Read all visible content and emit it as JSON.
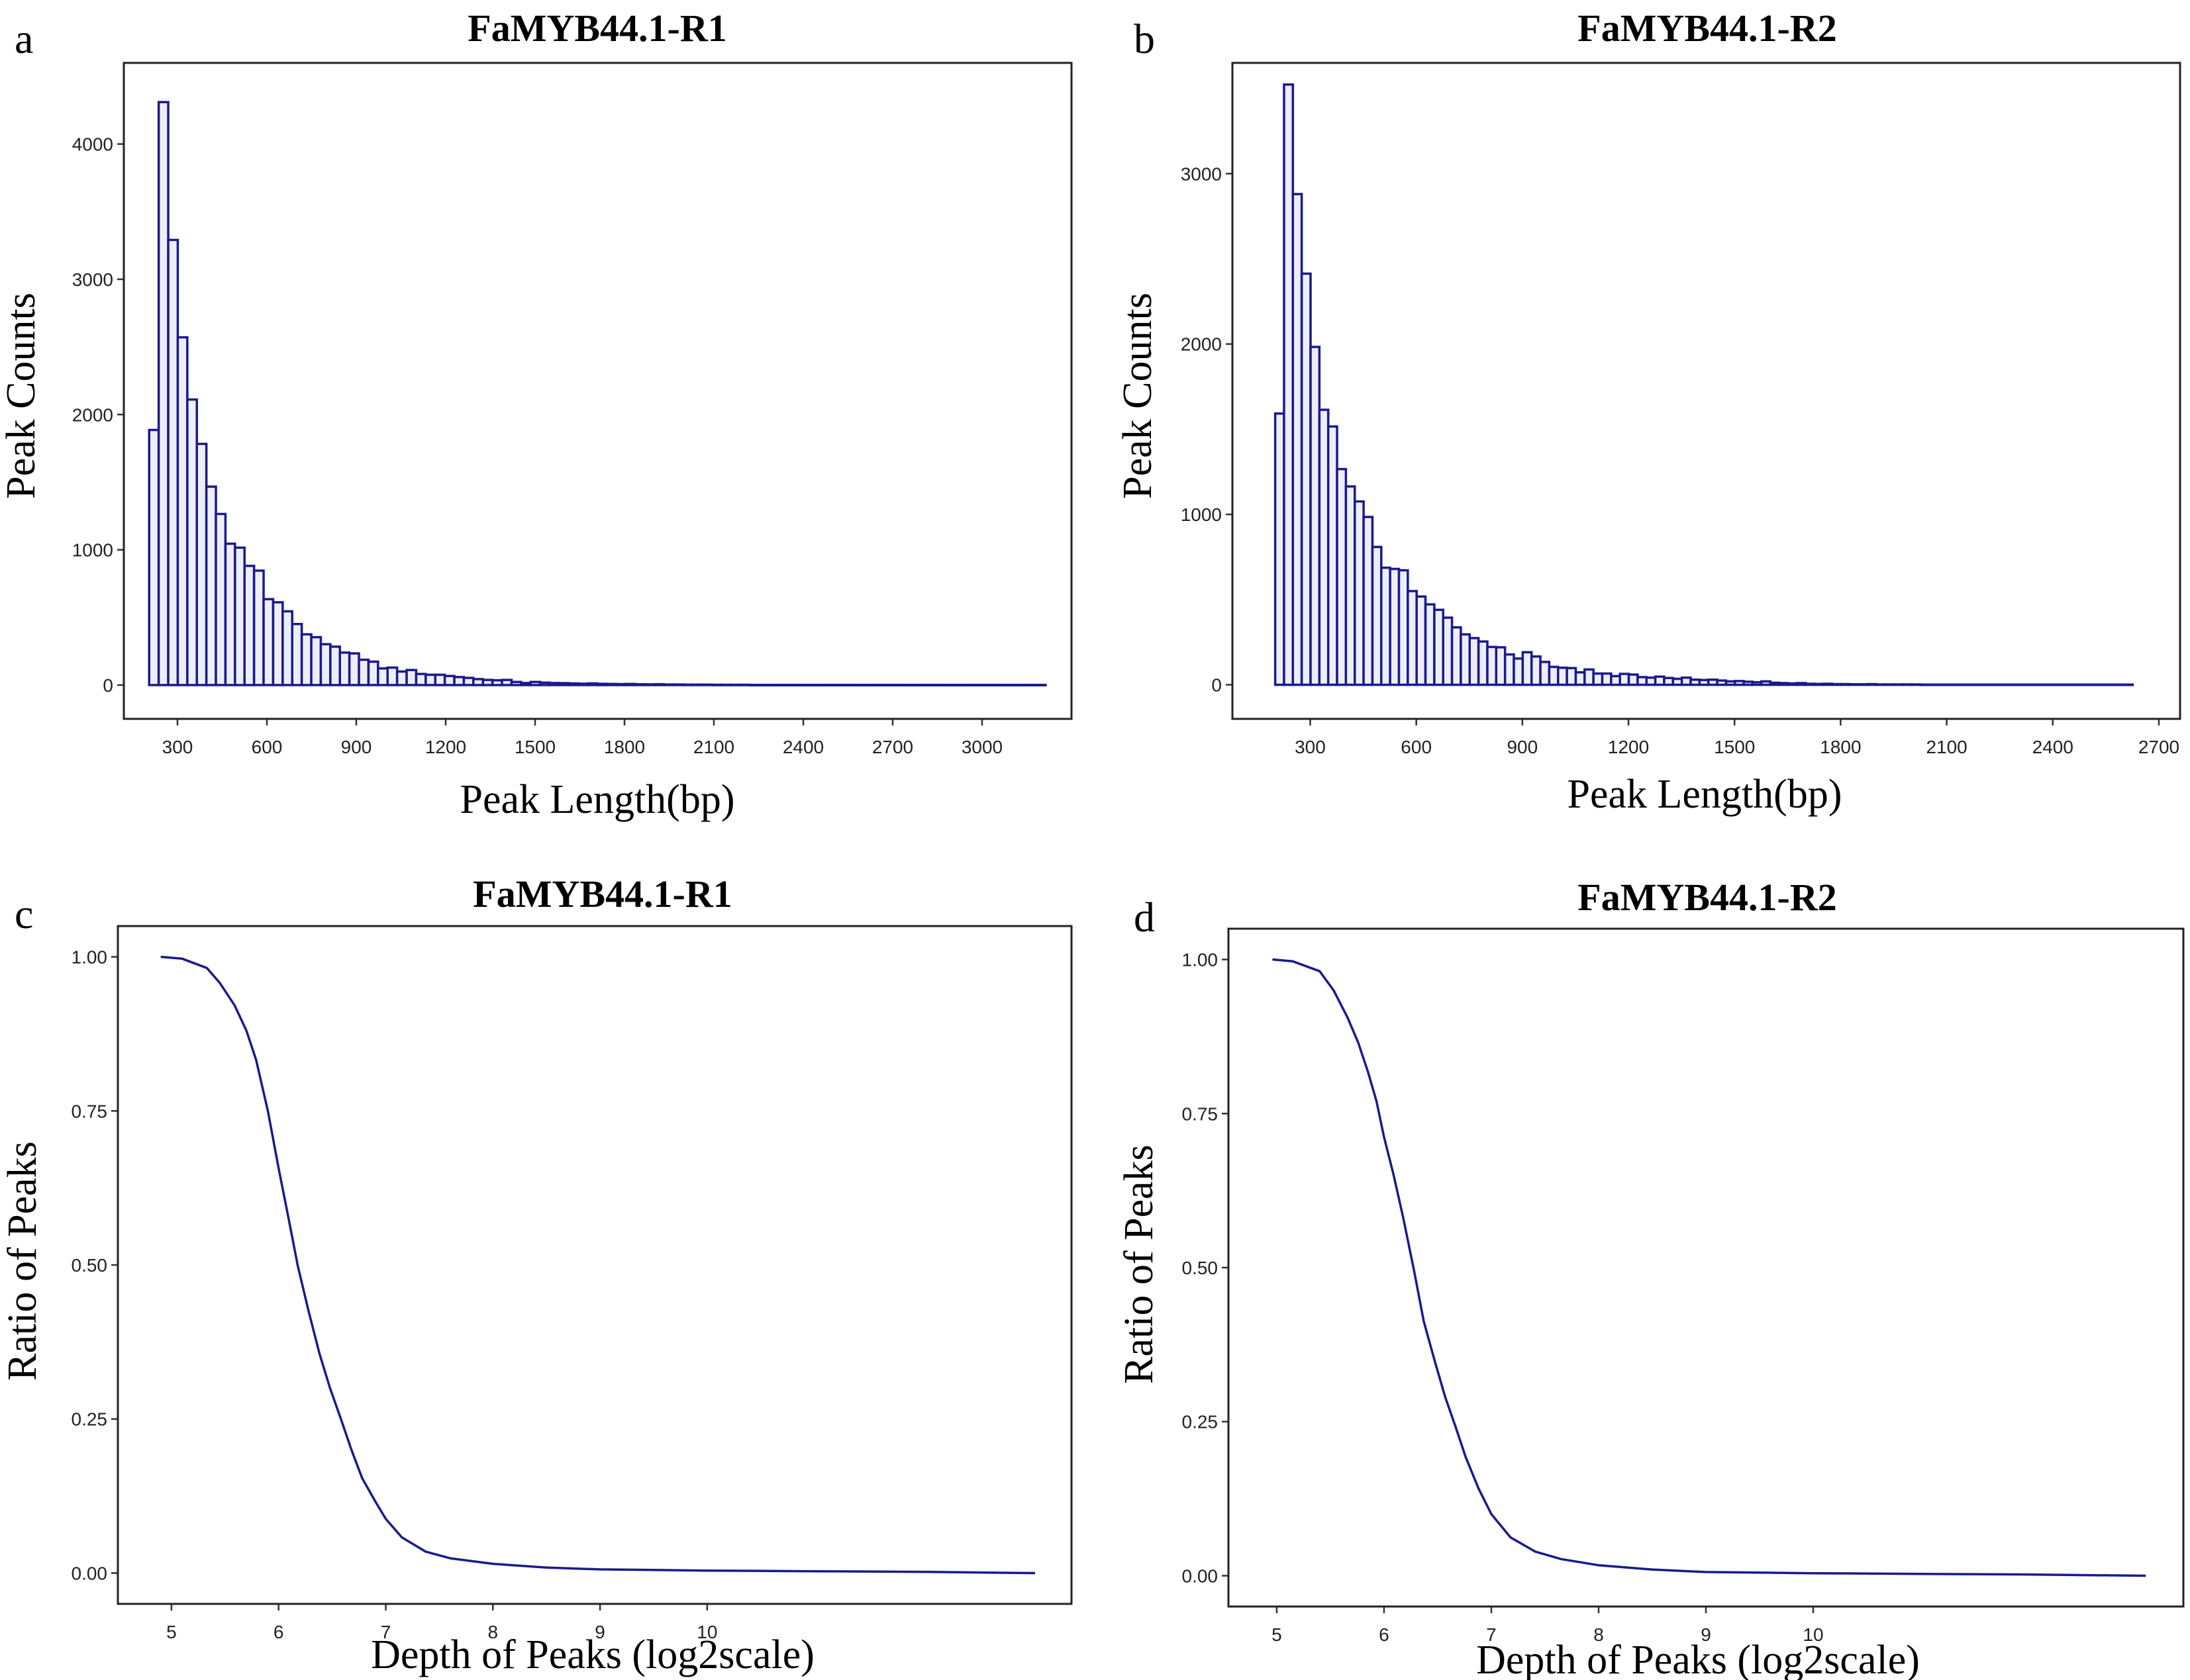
{
  "colors": {
    "bar_stroke": "#1a1a8c",
    "bar_fill": "#eeeefa",
    "curve": "#1a1a8c"
  },
  "chart_data": [
    {
      "id": "a",
      "panel_letter": "a",
      "type": "bar",
      "subtype": "histogram",
      "title": "FaMYB44.1-R1",
      "xlabel": "Peak Length(bp)",
      "ylabel": "Peak Counts",
      "xlim": [
        120,
        3300
      ],
      "ylim": [
        -250,
        4600
      ],
      "xticks": [
        300,
        600,
        900,
        1200,
        1500,
        1800,
        2100,
        2400,
        2700,
        3000
      ],
      "yticks": [
        0,
        1000,
        2000,
        3000,
        4000
      ],
      "bin_start": 205,
      "bin_width": 32,
      "values": [
        1886,
        4310,
        3291,
        2571,
        2111,
        1783,
        1467,
        1265,
        1045,
        1016,
        881,
        846,
        635,
        612,
        545,
        451,
        375,
        354,
        302,
        284,
        240,
        234,
        187,
        173,
        123,
        129,
        100,
        111,
        82,
        76,
        76,
        67,
        59,
        53,
        44,
        38,
        35,
        38,
        23,
        15,
        23,
        18,
        15,
        14,
        12,
        10,
        12,
        9,
        8,
        7,
        8,
        6,
        5,
        6,
        4,
        4,
        3,
        3,
        3,
        2,
        2,
        2,
        2,
        1,
        1,
        1,
        1,
        1,
        1,
        1,
        1,
        1,
        1,
        1,
        1,
        1,
        1,
        1,
        1,
        1,
        1,
        1,
        1,
        1,
        1,
        1,
        1,
        1,
        1,
        1,
        1,
        1,
        1,
        1
      ]
    },
    {
      "id": "b",
      "panel_letter": "b",
      "type": "bar",
      "subtype": "histogram",
      "title": "FaMYB44.1-R2",
      "xlabel": "Peak Length(bp)",
      "ylabel": "Peak Counts",
      "xlim": [
        80,
        2760
      ],
      "ylim": [
        -200,
        3650
      ],
      "xticks": [
        300,
        600,
        900,
        1200,
        1500,
        1800,
        2100,
        2400,
        2700
      ],
      "yticks": [
        0,
        1000,
        2000,
        3000
      ],
      "bin_start": 201,
      "bin_width": 25,
      "values": [
        1592,
        3523,
        2880,
        2413,
        1983,
        1614,
        1516,
        1266,
        1164,
        1076,
        985,
        809,
        687,
        680,
        672,
        550,
        518,
        472,
        440,
        394,
        337,
        296,
        274,
        254,
        222,
        220,
        178,
        154,
        191,
        166,
        134,
        105,
        100,
        98,
        73,
        90,
        66,
        66,
        51,
        64,
        60,
        45,
        42,
        48,
        40,
        35,
        42,
        30,
        28,
        30,
        25,
        20,
        22,
        18,
        15,
        20,
        12,
        10,
        8,
        10,
        6,
        5,
        6,
        4,
        4,
        3,
        3,
        4,
        2,
        2,
        2,
        2,
        2,
        1,
        1,
        1,
        1,
        1,
        1,
        1,
        1,
        1,
        1,
        1,
        1,
        1,
        1,
        1,
        1,
        1,
        1,
        1,
        1,
        1,
        1,
        1,
        1
      ]
    },
    {
      "id": "c",
      "panel_letter": "c",
      "type": "line",
      "title": "FaMYB44.1-R1",
      "xlabel": "Depth of Peaks (log2scale)",
      "ylabel": "Ratio of Peaks",
      "xlim": [
        4.5,
        13.4
      ],
      "ylim": [
        -0.05,
        1.05
      ],
      "xticks": [
        5,
        6,
        7,
        8,
        9,
        10
      ],
      "yticks": [
        0.0,
        0.25,
        0.5,
        0.75,
        1.0
      ],
      "ytick_labels": [
        "0.00",
        "0.25",
        "0.50",
        "0.75",
        "1.00"
      ],
      "x": [
        4.9,
        5.1,
        5.33,
        5.45,
        5.59,
        5.7,
        5.79,
        5.9,
        6.0,
        6.09,
        6.18,
        6.28,
        6.38,
        6.48,
        6.58,
        6.68,
        6.78,
        6.9,
        7.0,
        7.15,
        7.37,
        7.6,
        8.0,
        8.5,
        9.0,
        9.5,
        10.0,
        11.0,
        12.0,
        13.06
      ],
      "y": [
        1.0,
        0.997,
        0.982,
        0.958,
        0.921,
        0.88,
        0.833,
        0.75,
        0.657,
        0.578,
        0.498,
        0.425,
        0.357,
        0.3,
        0.251,
        0.2,
        0.154,
        0.117,
        0.088,
        0.058,
        0.035,
        0.024,
        0.015,
        0.009,
        0.006,
        0.005,
        0.004,
        0.003,
        0.002,
        0.0
      ]
    },
    {
      "id": "d",
      "panel_letter": "d",
      "type": "line",
      "title": "FaMYB44.1-R2",
      "xlabel": "Depth of Peaks (log2scale)",
      "ylabel": "Ratio of Peaks",
      "xlim": [
        4.55,
        13.45
      ],
      "ylim": [
        -0.05,
        1.05
      ],
      "xticks": [
        5,
        6,
        7,
        8,
        9,
        10
      ],
      "yticks": [
        0.0,
        0.25,
        0.5,
        0.75,
        1.0
      ],
      "ytick_labels": [
        "0.00",
        "0.25",
        "0.50",
        "0.75",
        "1.00"
      ],
      "x": [
        4.96,
        5.15,
        5.4,
        5.53,
        5.66,
        5.76,
        5.85,
        5.93,
        6.0,
        6.09,
        6.18,
        6.28,
        6.37,
        6.47,
        6.57,
        6.67,
        6.76,
        6.88,
        7.0,
        7.18,
        7.41,
        7.65,
        8.0,
        8.5,
        9.0,
        9.5,
        10.0,
        11.0,
        12.0,
        13.1
      ],
      "y": [
        1.0,
        0.997,
        0.981,
        0.95,
        0.906,
        0.865,
        0.818,
        0.77,
        0.712,
        0.65,
        0.58,
        0.495,
        0.413,
        0.35,
        0.29,
        0.24,
        0.193,
        0.142,
        0.1,
        0.062,
        0.039,
        0.027,
        0.017,
        0.01,
        0.006,
        0.005,
        0.004,
        0.003,
        0.002,
        0.0
      ]
    }
  ]
}
